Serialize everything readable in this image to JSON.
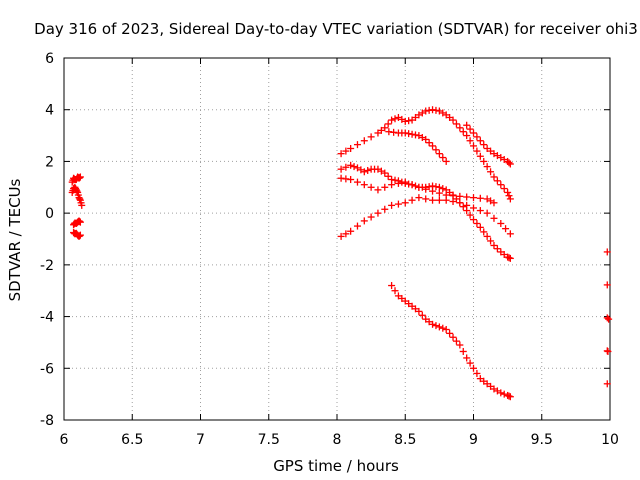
{
  "chart_data": {
    "type": "scatter",
    "title": "Day 316 of 2023, Sidereal Day-to-day VTEC variation (SDTVAR) for receiver ohi3",
    "xlabel": "GPS time / hours",
    "ylabel": "SDTVAR / TECUs",
    "xlim": [
      6,
      10
    ],
    "ylim": [
      -8,
      6
    ],
    "xticks": [
      6,
      6.5,
      7,
      7.5,
      8,
      8.5,
      9,
      9.5,
      10
    ],
    "xtick_labels": [
      "6",
      "6.5",
      "7",
      "7.5",
      "8",
      "8.5",
      "9",
      "9.5",
      "10"
    ],
    "yticks": [
      -8,
      -6,
      -4,
      -2,
      0,
      2,
      4,
      6
    ],
    "ytick_labels": [
      "-8",
      "-6",
      "-4",
      "-2",
      "0",
      "2",
      "4",
      "6"
    ],
    "grid": true,
    "marker": "plus",
    "color": "#ff0000",
    "series": [
      {
        "x": [
          6.06,
          6.07,
          6.08,
          6.09,
          6.1,
          6.11,
          6.12
        ],
        "y": [
          1.2,
          1.35,
          1.3,
          1.3,
          1.4,
          1.35,
          1.4
        ]
      },
      {
        "x": [
          6.06,
          6.07,
          6.08,
          6.09,
          6.1,
          6.11,
          6.12,
          6.13
        ],
        "y": [
          0.8,
          0.95,
          1.0,
          0.9,
          0.8,
          0.6,
          0.5,
          0.3
        ]
      },
      {
        "x": [
          6.07,
          6.08,
          6.09,
          6.1,
          6.11,
          6.12
        ],
        "y": [
          -0.45,
          -0.38,
          -0.4,
          -0.35,
          -0.3,
          -0.35
        ]
      },
      {
        "x": [
          6.07,
          6.08,
          6.09,
          6.1,
          6.11,
          6.12
        ],
        "y": [
          -0.75,
          -0.8,
          -0.78,
          -0.85,
          -0.9,
          -0.85
        ]
      },
      {
        "x": [
          8.03,
          8.1,
          8.2,
          8.3,
          8.35,
          8.4,
          8.45,
          8.5,
          8.55,
          8.6,
          8.65,
          8.7,
          8.75,
          8.8,
          8.85,
          8.9,
          8.95,
          9.0,
          9.05,
          9.1,
          9.15,
          9.2,
          9.25,
          9.27
        ],
        "y": [
          2.3,
          2.5,
          2.8,
          3.1,
          3.3,
          3.6,
          3.7,
          3.55,
          3.6,
          3.8,
          3.95,
          4.0,
          3.95,
          3.8,
          3.6,
          3.3,
          3.0,
          2.6,
          2.2,
          1.8,
          1.4,
          1.1,
          0.8,
          0.55
        ]
      },
      {
        "x": [
          8.38,
          8.45,
          8.5,
          8.55,
          8.6,
          8.65,
          8.7,
          8.75,
          8.8
        ],
        "y": [
          3.15,
          3.1,
          3.1,
          3.05,
          3.0,
          2.85,
          2.6,
          2.3,
          2.0
        ]
      },
      {
        "x": [
          8.95,
          9.0,
          9.05,
          9.1,
          9.15,
          9.2,
          9.25,
          9.27
        ],
        "y": [
          3.4,
          3.1,
          2.8,
          2.5,
          2.3,
          2.15,
          2.0,
          1.9
        ]
      },
      {
        "x": [
          8.03,
          8.1,
          8.15,
          8.2,
          8.25,
          8.3,
          8.35,
          8.4,
          8.45,
          8.5,
          8.55,
          8.6,
          8.65,
          8.7,
          8.75,
          8.8,
          8.85,
          8.9,
          8.95,
          9.0,
          9.05,
          9.1,
          9.15,
          9.2,
          9.25,
          9.27
        ],
        "y": [
          1.7,
          1.85,
          1.75,
          1.6,
          1.7,
          1.7,
          1.55,
          1.3,
          1.25,
          1.15,
          1.1,
          1.0,
          1.0,
          1.05,
          1.0,
          0.9,
          0.7,
          0.4,
          0.1,
          -0.25,
          -0.55,
          -0.9,
          -1.25,
          -1.5,
          -1.7,
          -1.75
        ]
      },
      {
        "x": [
          8.03,
          8.1,
          8.2,
          8.3,
          8.4,
          8.5,
          8.6,
          8.7,
          8.8,
          8.9,
          9.0,
          9.1,
          9.15
        ],
        "y": [
          1.35,
          1.3,
          1.1,
          0.9,
          1.1,
          1.2,
          1.0,
          0.85,
          0.7,
          0.65,
          0.6,
          0.55,
          0.4
        ]
      },
      {
        "x": [
          8.03,
          8.1,
          8.2,
          8.3,
          8.4,
          8.5,
          8.6,
          8.7,
          8.8,
          8.9,
          9.0,
          9.1,
          9.2,
          9.27
        ],
        "y": [
          -0.9,
          -0.7,
          -0.3,
          0.0,
          0.3,
          0.4,
          0.6,
          0.5,
          0.5,
          0.4,
          0.2,
          0.0,
          -0.4,
          -0.8
        ]
      },
      {
        "x": [
          8.4,
          8.45,
          8.5,
          8.55,
          8.6,
          8.65,
          8.7,
          8.75,
          8.8,
          8.85,
          8.9,
          8.95,
          9.0,
          9.05,
          9.1,
          9.15,
          9.2,
          9.25,
          9.27
        ],
        "y": [
          -2.8,
          -3.2,
          -3.4,
          -3.6,
          -3.8,
          -4.1,
          -4.3,
          -4.4,
          -4.5,
          -4.8,
          -5.1,
          -5.6,
          -6.0,
          -6.4,
          -6.6,
          -6.8,
          -6.95,
          -7.05,
          -7.1
        ]
      },
      {
        "x": [
          9.98,
          9.98,
          9.98,
          9.99
        ],
        "y": [
          -1.5,
          -4.05,
          -6.6,
          -4.1
        ]
      }
    ]
  }
}
